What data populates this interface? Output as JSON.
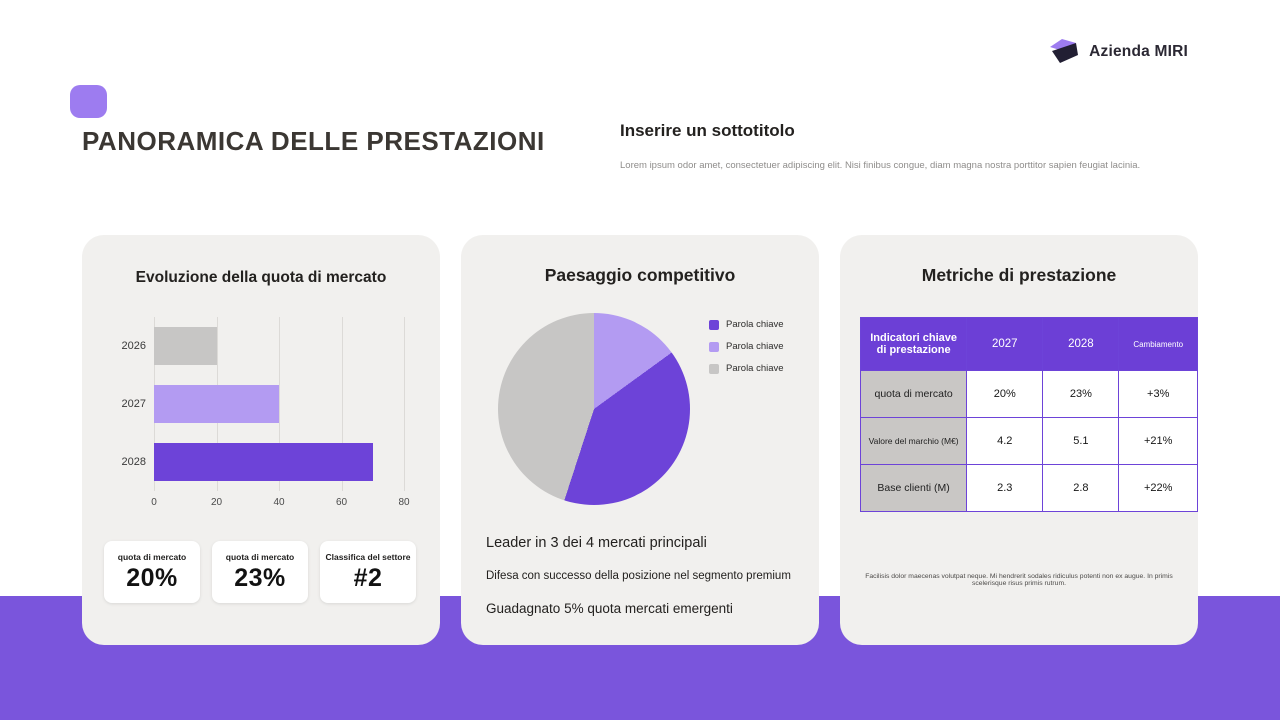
{
  "brand": {
    "name": "Azienda MIRI"
  },
  "header": {
    "title": "PANORAMICA DELLE PRESTAZIONI",
    "subtitle": "Inserire un sottotitolo",
    "body": "Lorem ipsum odor amet, consectetuer adipiscing elit. Nisi finibus congue, diam magna nostra porttitor sapien feugiat lacinia."
  },
  "colors": {
    "accent": "#6d43d8",
    "accent_light": "#b39bf2",
    "band": "#7a55dc",
    "gray_series": "#c7c6c5",
    "card_bg": "#f1f0ee"
  },
  "cards": [
    {
      "title": "Evoluzione della quota di mercato",
      "stats": [
        {
          "label": "quota di mercato",
          "value": "20%"
        },
        {
          "label": "quota di mercato",
          "value": "23%"
        },
        {
          "label": "Classifica del settore",
          "value": "#2"
        }
      ]
    },
    {
      "title": "Paesaggio competitivo",
      "bullets": [
        "Leader in 3 dei 4 mercati principali",
        "Difesa con successo della posizione nel segmento premium",
        "Guadagnato 5% quota mercati emergenti"
      ]
    },
    {
      "title": "Metriche di prestazione",
      "footnote": "Facilisis dolor maecenas volutpat neque. Mi hendrerit sodales ridiculus potenti non ex augue. In primis scelerisque risus primis rutrum."
    }
  ],
  "chart_data": [
    {
      "type": "bar",
      "title": "Evoluzione della quota di mercato",
      "orientation": "horizontal",
      "categories": [
        "2026",
        "2027",
        "2028"
      ],
      "values": [
        20,
        40,
        70
      ],
      "colors": [
        "#c7c6c5",
        "#b39bf2",
        "#6d43d8"
      ],
      "xlabel": "",
      "ylabel": "",
      "xlim": [
        0,
        80
      ],
      "xticks": [
        0,
        20,
        40,
        60,
        80
      ],
      "grid": true
    },
    {
      "type": "pie",
      "title": "Paesaggio competitivo",
      "slices": [
        {
          "label": "Parola chiave",
          "value": 15,
          "color": "#b39bf2"
        },
        {
          "label": "Parola chiave",
          "value": 40,
          "color": "#6d43d8"
        },
        {
          "label": "Parola chiave",
          "value": 45,
          "color": "#c7c6c5"
        }
      ],
      "legend": [
        {
          "label": "Parola chiave",
          "color": "#6d43d8"
        },
        {
          "label": "Parola chiave",
          "color": "#b39bf2"
        },
        {
          "label": "Parola chiave",
          "color": "#c7c6c5"
        }
      ],
      "legend_position": "right"
    },
    {
      "type": "table",
      "headers": [
        "Indicatori chiave di prestazione",
        "2027",
        "2028",
        "Cambiamento"
      ],
      "rows": [
        [
          "quota di mercato",
          "20%",
          "23%",
          "+3%"
        ],
        [
          "Valore del marchio (M€)",
          "4.2",
          "5.1",
          "+21%"
        ],
        [
          "Base clienti (M)",
          "2.3",
          "2.8",
          "+22%"
        ]
      ]
    }
  ]
}
